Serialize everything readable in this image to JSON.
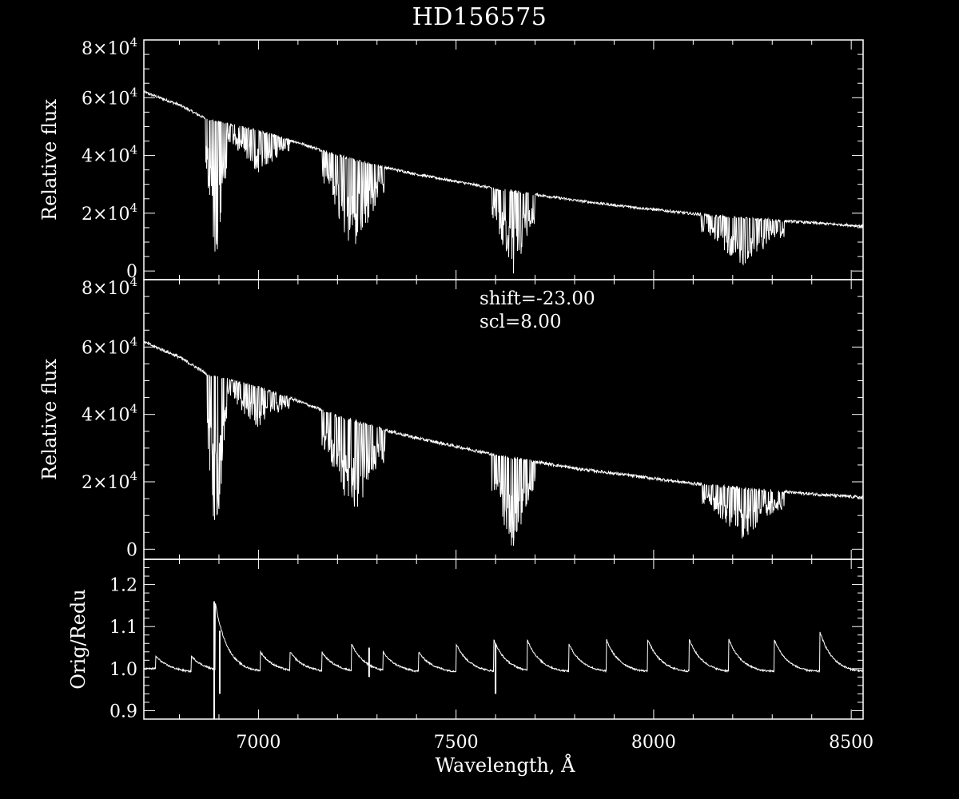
{
  "title": "HD156575",
  "annotation": {
    "shift": "shift=-23.00",
    "scl": "scl=8.00"
  },
  "colors": {
    "background": "#000000",
    "foreground": "#ffffff"
  },
  "chart_data": [
    {
      "type": "line",
      "panel": "top",
      "title": "HD156575",
      "ylabel": "Relative flux",
      "xlim": [
        6710,
        8530
      ],
      "ylim": [
        -3000,
        80000
      ],
      "yticks": [
        0,
        20000,
        40000,
        60000,
        80000
      ],
      "ytick_labels": [
        {
          "mant": "0"
        },
        {
          "mant": "2",
          "exp": "4"
        },
        {
          "mant": "4",
          "exp": "4"
        },
        {
          "mant": "6",
          "exp": "4"
        },
        {
          "mant": "8",
          "exp": "4"
        }
      ],
      "continuum": {
        "x": [
          6710,
          6800,
          6870,
          7000,
          7100,
          7200,
          7300,
          7400,
          7500,
          7600,
          7700,
          7800,
          7900,
          8000,
          8100,
          8200,
          8300,
          8400,
          8500,
          8530
        ],
        "y": [
          62000,
          57500,
          52500,
          48500,
          44500,
          40000,
          36500,
          33500,
          31000,
          28500,
          26500,
          24500,
          22800,
          21300,
          19800,
          18600,
          17600,
          16700,
          15800,
          15500
        ]
      },
      "absorption_bands": [
        {
          "range": [
            6865,
            6920
          ],
          "min_flux": 1000
        },
        {
          "range": [
            6920,
            7080
          ],
          "min_flux": 34000
        },
        {
          "range": [
            7160,
            7320
          ],
          "min_flux": 7000
        },
        {
          "range": [
            7590,
            7700
          ],
          "min_flux": -1000
        },
        {
          "range": [
            8120,
            8330
          ],
          "min_flux": 2000
        }
      ],
      "grid": false
    },
    {
      "type": "line",
      "panel": "middle",
      "ylabel": "Relative flux",
      "xlim": [
        6710,
        8530
      ],
      "ylim": [
        -3000,
        80000
      ],
      "yticks": [
        0,
        20000,
        40000,
        60000,
        80000
      ],
      "ytick_labels": [
        {
          "mant": "0"
        },
        {
          "mant": "2",
          "exp": "4"
        },
        {
          "mant": "4",
          "exp": "4"
        },
        {
          "mant": "6",
          "exp": "4"
        },
        {
          "mant": "8",
          "exp": "4"
        }
      ],
      "continuum": {
        "x": [
          6710,
          6800,
          6870,
          7000,
          7100,
          7200,
          7300,
          7400,
          7500,
          7600,
          7700,
          7800,
          7900,
          8000,
          8100,
          8200,
          8300,
          8400,
          8500,
          8530
        ],
        "y": [
          61500,
          57000,
          52000,
          48000,
          44000,
          39500,
          36000,
          33000,
          30500,
          28000,
          26000,
          24000,
          22500,
          21000,
          19500,
          18300,
          17300,
          16400,
          15600,
          15300
        ]
      },
      "absorption_bands": [
        {
          "range": [
            6865,
            6920
          ],
          "min_flux": 2000
        },
        {
          "range": [
            6920,
            7080
          ],
          "min_flux": 36000
        },
        {
          "range": [
            7160,
            7320
          ],
          "min_flux": 10000
        },
        {
          "range": [
            7590,
            7700
          ],
          "min_flux": -1000
        },
        {
          "range": [
            8120,
            8330
          ],
          "min_flux": 3000
        }
      ],
      "grid": false
    },
    {
      "type": "line",
      "panel": "bottom",
      "ylabel": "Orig/Redu",
      "xlabel": "Wavelength, Å",
      "xlim": [
        6710,
        8530
      ],
      "ylim": [
        0.88,
        1.26
      ],
      "yticks": [
        0.9,
        1.0,
        1.1,
        1.2
      ],
      "ytick_labels": [
        {
          "mant": "0.9"
        },
        {
          "mant": "1.0"
        },
        {
          "mant": "1.1"
        },
        {
          "mant": "1.2"
        }
      ],
      "xticks": [
        7000,
        7500,
        8000,
        8500
      ],
      "xtick_labels": [
        "7000",
        "7500",
        "8000",
        "8500"
      ],
      "baseline": 1.0,
      "order_peaks": [
        {
          "x": 6740,
          "y": 1.03
        },
        {
          "x": 6830,
          "y": 1.03
        },
        {
          "x": 6890,
          "y": 1.16
        },
        {
          "x": 7005,
          "y": 1.04
        },
        {
          "x": 7080,
          "y": 1.04
        },
        {
          "x": 7160,
          "y": 1.04
        },
        {
          "x": 7235,
          "y": 1.06
        },
        {
          "x": 7315,
          "y": 1.04
        },
        {
          "x": 7405,
          "y": 1.04
        },
        {
          "x": 7500,
          "y": 1.06
        },
        {
          "x": 7595,
          "y": 1.07
        },
        {
          "x": 7680,
          "y": 1.07
        },
        {
          "x": 7785,
          "y": 1.06
        },
        {
          "x": 7880,
          "y": 1.07
        },
        {
          "x": 7985,
          "y": 1.07
        },
        {
          "x": 8090,
          "y": 1.07
        },
        {
          "x": 8190,
          "y": 1.07
        },
        {
          "x": 8305,
          "y": 1.07
        },
        {
          "x": 8420,
          "y": 1.09
        }
      ],
      "glitches": [
        {
          "x": 6888,
          "low": 0.88,
          "high": 1.16
        },
        {
          "x": 6902,
          "low": 0.94,
          "high": 1.09
        },
        {
          "x": 7600,
          "low": 0.94,
          "high": 1.06
        },
        {
          "x": 7280,
          "low": 0.98,
          "high": 1.05
        }
      ],
      "grid": false
    }
  ]
}
